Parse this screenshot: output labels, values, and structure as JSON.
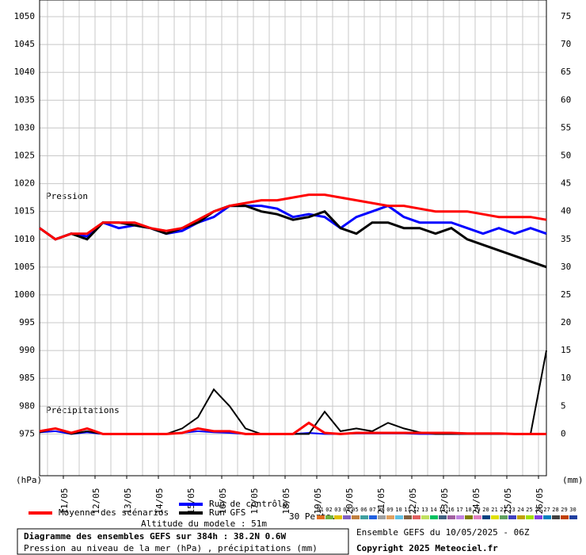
{
  "chart_data": {
    "type": "line",
    "pressure_label": "Pression",
    "precip_label": "Précipitations",
    "y_unit": "(hPa)",
    "y2_unit": "(mm)",
    "xlim": [
      0,
      384
    ],
    "xticks": [
      {
        "value": 18,
        "label": "11/05"
      },
      {
        "value": 42,
        "label": "12/05"
      },
      {
        "value": 66,
        "label": "13/05"
      },
      {
        "value": 90,
        "label": "14/05"
      },
      {
        "value": 114,
        "label": "15/05"
      },
      {
        "value": 138,
        "label": "16/05"
      },
      {
        "value": 162,
        "label": "17/05"
      },
      {
        "value": 186,
        "label": "18/05"
      },
      {
        "value": 210,
        "label": "19/05"
      },
      {
        "value": 234,
        "label": "20/05"
      },
      {
        "value": 258,
        "label": "21/05"
      },
      {
        "value": 282,
        "label": "22/05"
      },
      {
        "value": 306,
        "label": "23/05"
      },
      {
        "value": 330,
        "label": "24/05"
      },
      {
        "value": 354,
        "label": "25/05"
      },
      {
        "value": 378,
        "label": "26/05"
      }
    ],
    "ylim": [
      967.5,
      1053
    ],
    "yticks": [
      975,
      980,
      985,
      990,
      995,
      1000,
      1005,
      1010,
      1015,
      1020,
      1025,
      1030,
      1035,
      1040,
      1045,
      1050
    ],
    "y2lim": [
      -7.5,
      78
    ],
    "y2ticks": [
      0,
      5,
      10,
      15,
      20,
      25,
      30,
      35,
      40,
      45,
      50,
      55,
      60,
      65,
      70,
      75
    ],
    "grid": true,
    "x": [
      0,
      12,
      24,
      36,
      48,
      60,
      72,
      84,
      96,
      108,
      120,
      132,
      144,
      156,
      168,
      180,
      192,
      204,
      216,
      228,
      240,
      252,
      264,
      276,
      288,
      300,
      312,
      324,
      336,
      348,
      360,
      372,
      384
    ],
    "series": [
      {
        "name": "Moyenne des scénarios",
        "color": "#ff0000",
        "values": [
          1012,
          1010,
          1011,
          1011,
          1013,
          1013,
          1013,
          1012,
          1011.5,
          1012,
          1013.5,
          1015,
          1016,
          1016.5,
          1017,
          1017,
          1017.5,
          1018,
          1018,
          1017.5,
          1017,
          1016.5,
          1016,
          1016,
          1015.5,
          1015,
          1015,
          1015,
          1014.5,
          1014,
          1014,
          1014,
          1013.5
        ],
        "precipitation": [
          0.5,
          1,
          0.2,
          1,
          0,
          0,
          0,
          0,
          0,
          0.2,
          1,
          0.5,
          0.5,
          0,
          0,
          0,
          0,
          2,
          0.2,
          0,
          0.2,
          0.2,
          0.2,
          0.2,
          0.2,
          0.2,
          0.2,
          0.1,
          0.1,
          0.1,
          0,
          0,
          0
        ]
      },
      {
        "name": "Run de contrôle",
        "color": "#0000ff",
        "values": [
          1012,
          1010,
          1011,
          1010.5,
          1013,
          1012,
          1012.5,
          1012,
          1011,
          1011.5,
          1013,
          1014,
          1016,
          1016,
          1016,
          1015.5,
          1014,
          1014.5,
          1014,
          1012,
          1014,
          1015,
          1016,
          1014,
          1013,
          1013,
          1013,
          1012,
          1011,
          1012,
          1011,
          1012,
          1011
        ],
        "precipitation": [
          0.3,
          0.5,
          0,
          0.3,
          0,
          0,
          0,
          0,
          0,
          0.2,
          0.5,
          0.3,
          0.2,
          0,
          0,
          0,
          0,
          0.2,
          0,
          0,
          0.1,
          0.1,
          0.1,
          0.1,
          0,
          0,
          0,
          0,
          0,
          0,
          0,
          0,
          0
        ]
      },
      {
        "name": "Run GFS",
        "color": "#000000",
        "values": [
          1012,
          1010,
          1011,
          1010,
          1013,
          1013,
          1012.5,
          1012,
          1011,
          1012,
          1013,
          1015,
          1016,
          1016,
          1015,
          1014.5,
          1013.5,
          1014,
          1015,
          1012,
          1011,
          1013,
          1013,
          1012,
          1012,
          1011,
          1012,
          1010,
          1009,
          1008,
          1007,
          1006,
          1005
        ],
        "precipitation": [
          0.3,
          1,
          0,
          0.5,
          0,
          0,
          0,
          0,
          0,
          1,
          3,
          8,
          5,
          1,
          0,
          0,
          0,
          0,
          4,
          0.5,
          1,
          0.5,
          2,
          1,
          0.3,
          0,
          0,
          0,
          0,
          0,
          0,
          0,
          15
        ]
      }
    ],
    "perturbations": {
      "label": "30 Perts.",
      "members": [
        {
          "label": "01",
          "color": "#e07020"
        },
        {
          "label": "02",
          "color": "#70b040"
        },
        {
          "label": "03",
          "color": "#e0c000"
        },
        {
          "label": "04",
          "color": "#8060c0"
        },
        {
          "label": "05",
          "color": "#c08040"
        },
        {
          "label": "06",
          "color": "#40a0a0"
        },
        {
          "label": "07",
          "color": "#2060e0"
        },
        {
          "label": "08",
          "color": "#a0a0a0"
        },
        {
          "label": "09",
          "color": "#e0a060"
        },
        {
          "label": "10",
          "color": "#60c0e0"
        },
        {
          "label": "11",
          "color": "#806040"
        },
        {
          "label": "12",
          "color": "#e06060"
        },
        {
          "label": "13",
          "color": "#c0e060"
        },
        {
          "label": "14",
          "color": "#00c060"
        },
        {
          "label": "15",
          "color": "#406080"
        },
        {
          "label": "16",
          "color": "#a060a0"
        },
        {
          "label": "17",
          "color": "#c080e0"
        },
        {
          "label": "18",
          "color": "#808000"
        },
        {
          "label": "19",
          "color": "#e080c0"
        },
        {
          "label": "20",
          "color": "#004080"
        },
        {
          "label": "21",
          "color": "#e0e000"
        },
        {
          "label": "22",
          "color": "#60a060"
        },
        {
          "label": "23",
          "color": "#4040c0"
        },
        {
          "label": "24",
          "color": "#c0a000"
        },
        {
          "label": "25",
          "color": "#a0e000"
        },
        {
          "label": "26",
          "color": "#8040e0"
        },
        {
          "label": "27",
          "color": "#0080c0"
        },
        {
          "label": "28",
          "color": "#404040"
        },
        {
          "label": "29",
          "color": "#c04000"
        },
        {
          "label": "30",
          "color": "#2040a0"
        }
      ]
    },
    "model_altitude": "Altitude du modele : 51m",
    "box_title": "Diagramme des ensembles GEFS sur 384h : 38.2N 0.6W",
    "box_subtitle": "Pression au niveau de la mer (hPa) , précipitations (mm)",
    "run_info": "Ensemble GEFS du 10/05/2025 - 06Z",
    "copyright": "Copyright 2025 Meteociel.fr"
  }
}
